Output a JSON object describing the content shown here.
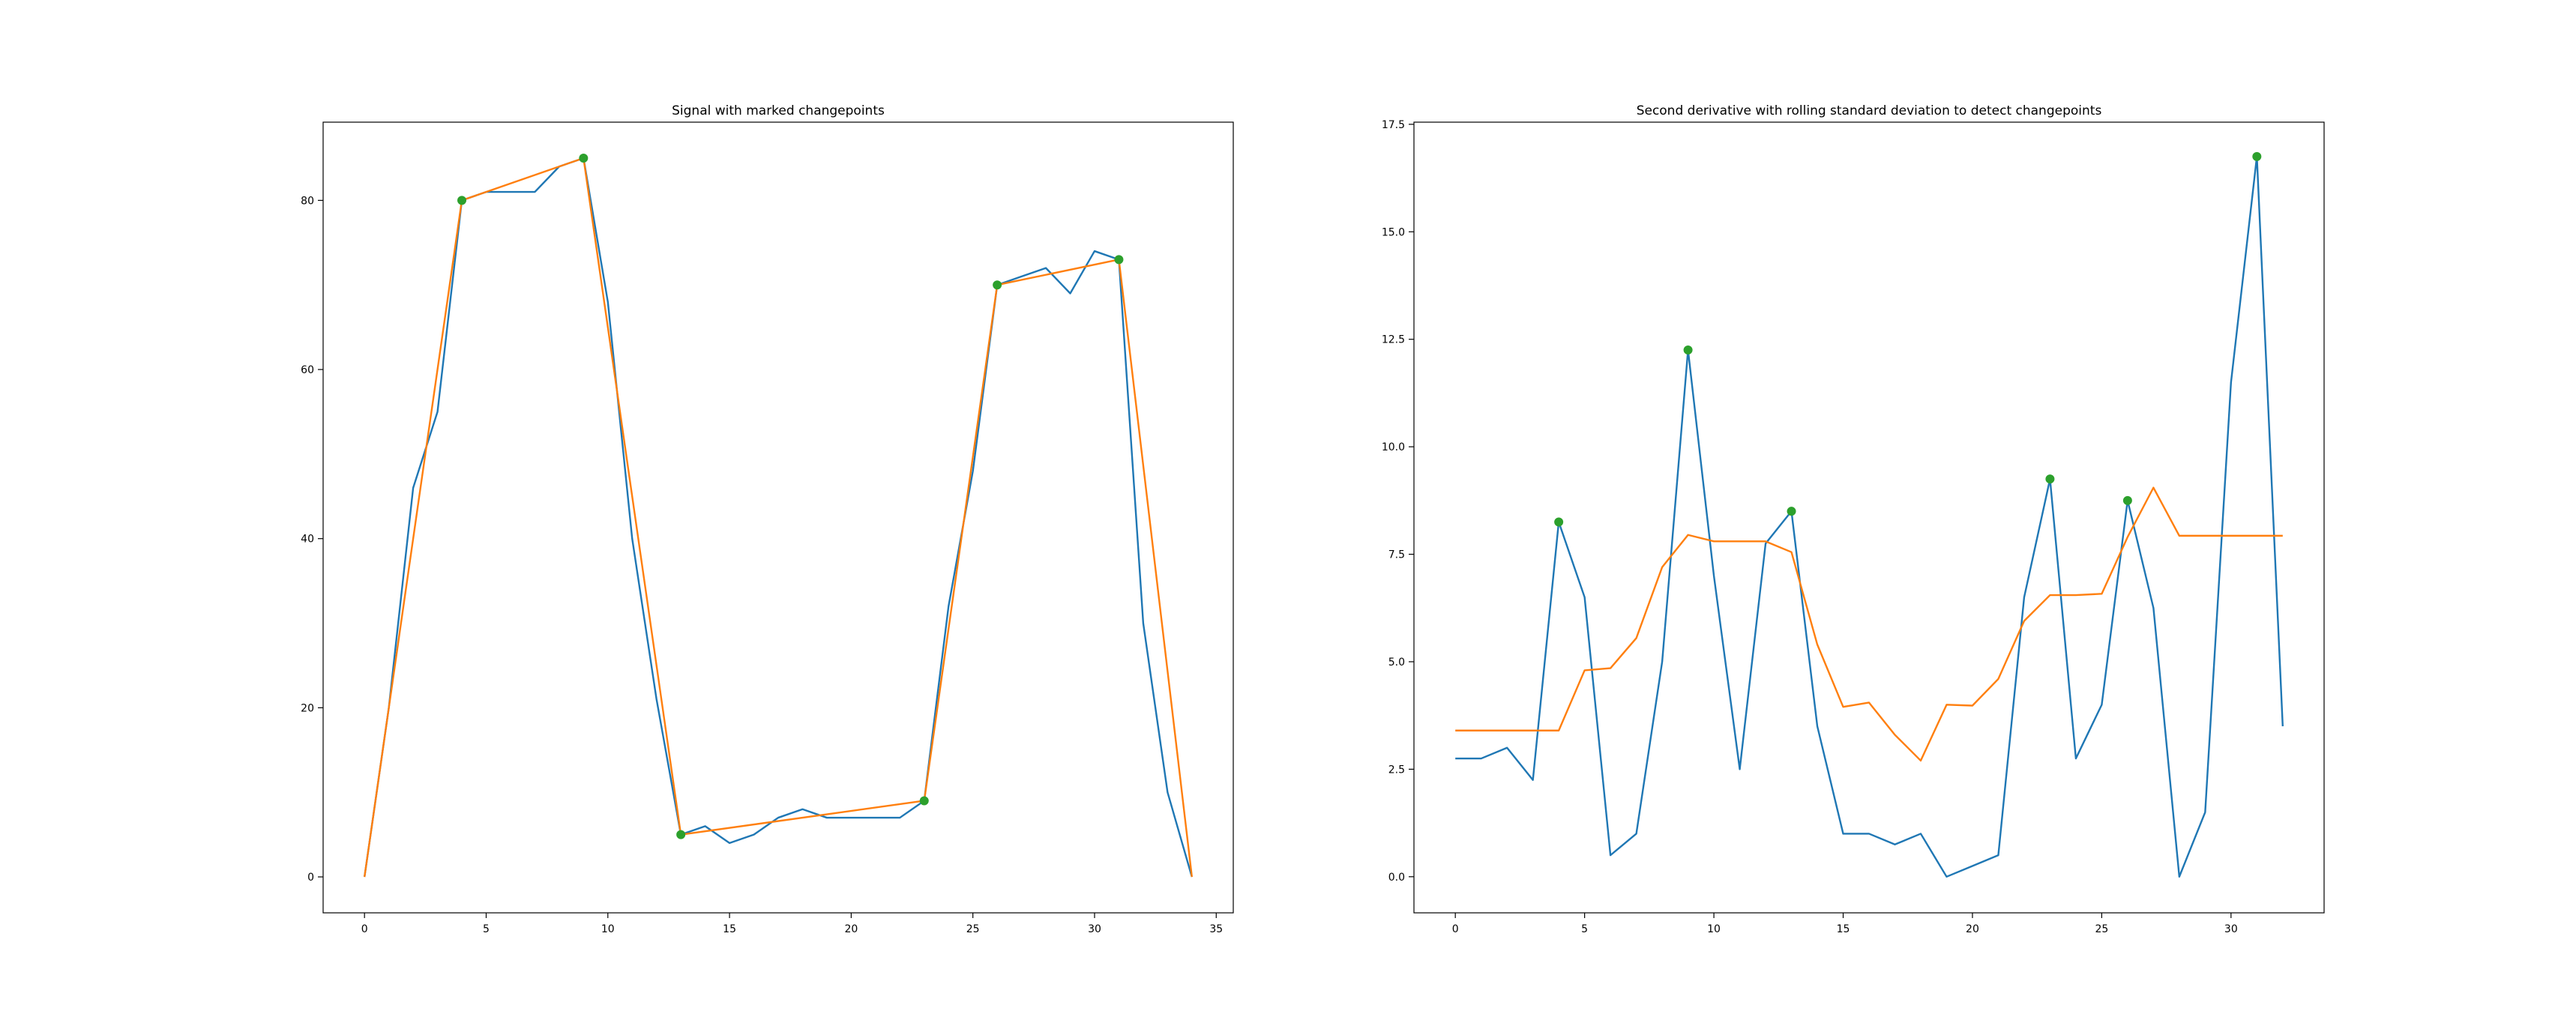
{
  "colors": {
    "signal": "#1f77b4",
    "fit": "#ff7f0e",
    "points": "#2ca02c"
  },
  "chart_data": [
    {
      "type": "line",
      "title": "Signal with marked changepoints",
      "xlim": [
        -1.7,
        35.7
      ],
      "ylim": [
        -4.25,
        89.25
      ],
      "xticks": [
        0,
        5,
        10,
        15,
        20,
        25,
        30,
        35
      ],
      "yticks": [
        0,
        20,
        40,
        60,
        80
      ],
      "grid": false,
      "series": [
        {
          "color": "#1f77b4",
          "x": [
            0,
            1,
            2,
            3,
            4,
            5,
            6,
            7,
            8,
            9,
            10,
            11,
            12,
            13,
            14,
            15,
            16,
            17,
            18,
            19,
            20,
            21,
            22,
            23,
            24,
            25,
            26,
            27,
            28,
            29,
            30,
            31,
            32,
            33,
            34
          ],
          "y": [
            0,
            20,
            46,
            55,
            80,
            81,
            81,
            81,
            84,
            85,
            68,
            40,
            21,
            5,
            6,
            4,
            5,
            7,
            8,
            7,
            7,
            7,
            7,
            9,
            32,
            48,
            70,
            71,
            72,
            69,
            74,
            73,
            30,
            10,
            0
          ]
        },
        {
          "color": "#ff7f0e",
          "x": [
            0,
            4,
            9,
            13,
            23,
            26,
            31,
            34
          ],
          "y": [
            0,
            80,
            85,
            5,
            9,
            70,
            73,
            0
          ]
        }
      ],
      "markers": {
        "color": "#2ca02c",
        "x": [
          4,
          9,
          13,
          23,
          26,
          31
        ],
        "y": [
          80,
          85,
          5,
          9,
          70,
          73
        ]
      }
    },
    {
      "type": "line",
      "title": "Second derivative with rolling standard deviation to detect changepoints",
      "xlim": [
        -1.6,
        33.6
      ],
      "ylim": [
        -0.84,
        17.55
      ],
      "xticks": [
        0,
        5,
        10,
        15,
        20,
        25,
        30
      ],
      "yticks": [
        0.0,
        2.5,
        5.0,
        7.5,
        10.0,
        12.5,
        15.0,
        17.5
      ],
      "ytick_labels": [
        "0.0",
        "2.5",
        "5.0",
        "7.5",
        "10.0",
        "12.5",
        "15.0",
        "17.5"
      ],
      "grid": false,
      "series": [
        {
          "color": "#1f77b4",
          "x": [
            0,
            1,
            2,
            3,
            4,
            5,
            6,
            7,
            8,
            9,
            10,
            11,
            12,
            13,
            14,
            15,
            16,
            17,
            18,
            19,
            20,
            21,
            22,
            23,
            24,
            25,
            26,
            27,
            28,
            29,
            30,
            31,
            32
          ],
          "y": [
            2.75,
            2.75,
            3.0,
            2.25,
            8.25,
            6.5,
            0.5,
            1.0,
            5.0,
            12.25,
            7.0,
            2.5,
            7.75,
            8.5,
            3.5,
            1.0,
            1.0,
            0.75,
            1.0,
            0.0,
            0.25,
            0.5,
            6.5,
            9.25,
            2.75,
            4.0,
            8.75,
            6.25,
            0.0,
            1.5,
            11.5,
            16.75,
            3.5
          ]
        },
        {
          "color": "#ff7f0e",
          "x": [
            0,
            1,
            2,
            3,
            4,
            5,
            6,
            7,
            8,
            9,
            10,
            11,
            12,
            13,
            14,
            15,
            16,
            17,
            18,
            19,
            20,
            21,
            22,
            23,
            24,
            25,
            26,
            27,
            28,
            29,
            30,
            31,
            32
          ],
          "y": [
            3.4,
            3.4,
            3.4,
            3.4,
            3.4,
            4.8,
            4.85,
            5.55,
            7.2,
            7.95,
            7.8,
            7.8,
            7.8,
            7.55,
            5.4,
            3.95,
            4.05,
            3.3,
            2.7,
            4.0,
            3.98,
            4.6,
            5.95,
            6.55,
            6.55,
            6.58,
            7.9,
            9.05,
            7.93,
            7.93,
            7.93,
            7.93,
            7.93
          ]
        }
      ],
      "markers": {
        "color": "#2ca02c",
        "x": [
          4,
          9,
          13,
          23,
          26,
          31
        ],
        "y": [
          8.25,
          12.25,
          8.5,
          9.25,
          8.75,
          16.75
        ]
      }
    }
  ]
}
